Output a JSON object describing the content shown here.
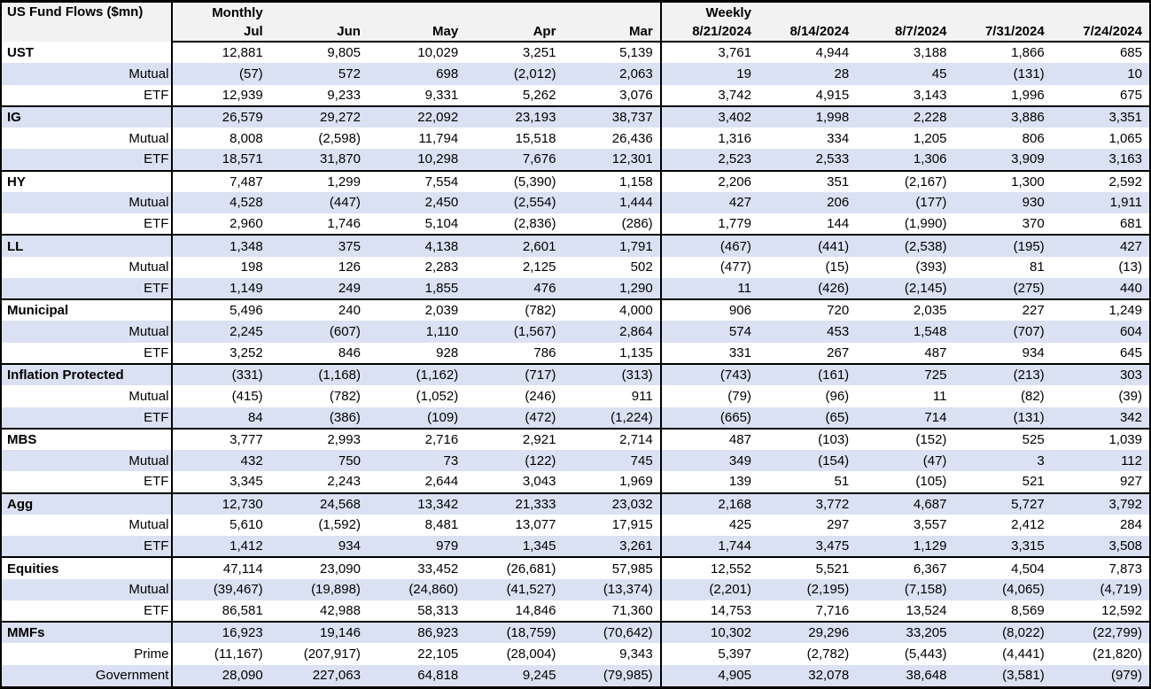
{
  "colors": {
    "row_band": "#D9E1F2",
    "header_bg": "#F2F2F2",
    "grid_line": "#000000",
    "text": "#000000"
  },
  "chart_data": {
    "type": "table",
    "title": "US Fund Flows ($mn)",
    "units": "$mn",
    "number_format": "thousands separated with commas; negative values shown in parentheses",
    "column_groups": [
      {
        "label": "Monthly",
        "columns": [
          "Jul",
          "Jun",
          "May",
          "Apr",
          "Mar"
        ]
      },
      {
        "label": "Weekly",
        "columns": [
          "8/21/2024",
          "8/14/2024",
          "8/7/2024",
          "7/31/2024",
          "7/24/2024"
        ]
      }
    ],
    "groups": [
      {
        "rows": [
          {
            "label": "UST",
            "monthly": [
              12881,
              9805,
              10029,
              3251,
              5139
            ],
            "weekly": [
              3761,
              4944,
              3188,
              1866,
              685
            ]
          },
          {
            "label": "Mutual",
            "monthly": [
              -57,
              572,
              698,
              -2012,
              2063
            ],
            "weekly": [
              19,
              28,
              45,
              -131,
              10
            ]
          },
          {
            "label": "ETF",
            "monthly": [
              12939,
              9233,
              9331,
              5262,
              3076
            ],
            "weekly": [
              3742,
              4915,
              3143,
              1996,
              675
            ]
          }
        ]
      },
      {
        "rows": [
          {
            "label": "IG",
            "monthly": [
              26579,
              29272,
              22092,
              23193,
              38737
            ],
            "weekly": [
              3402,
              1998,
              2228,
              3886,
              3351
            ]
          },
          {
            "label": "Mutual",
            "monthly": [
              8008,
              -2598,
              11794,
              15518,
              26436
            ],
            "weekly": [
              1316,
              334,
              1205,
              806,
              1065
            ]
          },
          {
            "label": "ETF",
            "monthly": [
              18571,
              31870,
              10298,
              7676,
              12301
            ],
            "weekly": [
              2523,
              2533,
              1306,
              3909,
              3163
            ]
          }
        ]
      },
      {
        "rows": [
          {
            "label": "HY",
            "monthly": [
              7487,
              1299,
              7554,
              -5390,
              1158
            ],
            "weekly": [
              2206,
              351,
              -2167,
              1300,
              2592
            ]
          },
          {
            "label": "Mutual",
            "monthly": [
              4528,
              -447,
              2450,
              -2554,
              1444
            ],
            "weekly": [
              427,
              206,
              -177,
              930,
              1911
            ]
          },
          {
            "label": "ETF",
            "monthly": [
              2960,
              1746,
              5104,
              -2836,
              -286
            ],
            "weekly": [
              1779,
              144,
              -1990,
              370,
              681
            ]
          }
        ]
      },
      {
        "rows": [
          {
            "label": "LL",
            "monthly": [
              1348,
              375,
              4138,
              2601,
              1791
            ],
            "weekly": [
              -467,
              -441,
              -2538,
              -195,
              427
            ]
          },
          {
            "label": "Mutual",
            "monthly": [
              198,
              126,
              2283,
              2125,
              502
            ],
            "weekly": [
              -477,
              -15,
              -393,
              81,
              -13
            ]
          },
          {
            "label": "ETF",
            "monthly": [
              1149,
              249,
              1855,
              476,
              1290
            ],
            "weekly": [
              11,
              -426,
              -2145,
              -275,
              440
            ]
          }
        ]
      },
      {
        "rows": [
          {
            "label": "Municipal",
            "monthly": [
              5496,
              240,
              2039,
              -782,
              4000
            ],
            "weekly": [
              906,
              720,
              2035,
              227,
              1249
            ]
          },
          {
            "label": "Mutual",
            "monthly": [
              2245,
              -607,
              1110,
              -1567,
              2864
            ],
            "weekly": [
              574,
              453,
              1548,
              -707,
              604
            ]
          },
          {
            "label": "ETF",
            "monthly": [
              3252,
              846,
              928,
              786,
              1135
            ],
            "weekly": [
              331,
              267,
              487,
              934,
              645
            ]
          }
        ]
      },
      {
        "rows": [
          {
            "label": "Inflation Protected",
            "monthly": [
              -331,
              -1168,
              -1162,
              -717,
              -313
            ],
            "weekly": [
              -743,
              -161,
              725,
              -213,
              303
            ]
          },
          {
            "label": "Mutual",
            "monthly": [
              -415,
              -782,
              -1052,
              -246,
              911
            ],
            "weekly": [
              -79,
              -96,
              11,
              -82,
              -39
            ]
          },
          {
            "label": "ETF",
            "monthly": [
              84,
              -386,
              -109,
              -472,
              -1224
            ],
            "weekly": [
              -665,
              -65,
              714,
              -131,
              342
            ]
          }
        ]
      },
      {
        "rows": [
          {
            "label": "MBS",
            "monthly": [
              3777,
              2993,
              2716,
              2921,
              2714
            ],
            "weekly": [
              487,
              -103,
              -152,
              525,
              1039
            ]
          },
          {
            "label": "Mutual",
            "monthly": [
              432,
              750,
              73,
              -122,
              745
            ],
            "weekly": [
              349,
              -154,
              -47,
              3,
              112
            ]
          },
          {
            "label": "ETF",
            "monthly": [
              3345,
              2243,
              2644,
              3043,
              1969
            ],
            "weekly": [
              139,
              51,
              -105,
              521,
              927
            ]
          }
        ]
      },
      {
        "rows": [
          {
            "label": "Agg",
            "monthly": [
              12730,
              24568,
              13342,
              21333,
              23032
            ],
            "weekly": [
              2168,
              3772,
              4687,
              5727,
              3792
            ]
          },
          {
            "label": "Mutual",
            "monthly": [
              5610,
              -1592,
              8481,
              13077,
              17915
            ],
            "weekly": [
              425,
              297,
              3557,
              2412,
              284
            ]
          },
          {
            "label": "ETF",
            "monthly": [
              1412,
              934,
              979,
              1345,
              3261
            ],
            "weekly": [
              1744,
              3475,
              1129,
              3315,
              3508
            ]
          }
        ]
      },
      {
        "rows": [
          {
            "label": "Equities",
            "monthly": [
              47114,
              23090,
              33452,
              -26681,
              57985
            ],
            "weekly": [
              12552,
              5521,
              6367,
              4504,
              7873
            ]
          },
          {
            "label": "Mutual",
            "monthly": [
              -39467,
              -19898,
              -24860,
              -41527,
              -13374
            ],
            "weekly": [
              -2201,
              -2195,
              -7158,
              -4065,
              -4719
            ]
          },
          {
            "label": "ETF",
            "monthly": [
              86581,
              42988,
              58313,
              14846,
              71360
            ],
            "weekly": [
              14753,
              7716,
              13524,
              8569,
              12592
            ]
          }
        ]
      },
      {
        "rows": [
          {
            "label": "MMFs",
            "monthly": [
              16923,
              19146,
              86923,
              -18759,
              -70642
            ],
            "weekly": [
              10302,
              29296,
              33205,
              -8022,
              -22799
            ]
          },
          {
            "label": "Prime",
            "monthly": [
              -11167,
              -207917,
              22105,
              -28004,
              9343
            ],
            "weekly": [
              5397,
              -2782,
              -5443,
              -4441,
              -21820
            ]
          },
          {
            "label": "Government",
            "monthly": [
              28090,
              227063,
              64818,
              9245,
              -79985
            ],
            "weekly": [
              4905,
              32078,
              38648,
              -3581,
              -979
            ]
          }
        ]
      }
    ]
  }
}
